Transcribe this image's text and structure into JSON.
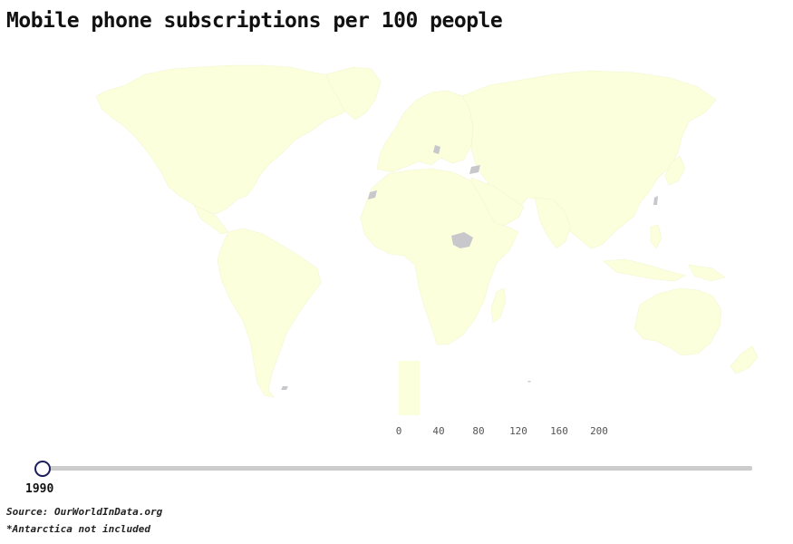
{
  "title": "Mobile phone subscriptions per 100 people",
  "map": {
    "land_color": "#fbffdc",
    "no_data_color": "#c8c8cc"
  },
  "legend": {
    "ticks": [
      "0",
      "40",
      "80",
      "120",
      "160",
      "200"
    ],
    "color": "#fbffdc"
  },
  "slider": {
    "year": "1990",
    "accent": "#1c1c5a"
  },
  "footer": {
    "source": "Source: OurWorldInData.org",
    "note": "*Antarctica not included"
  }
}
